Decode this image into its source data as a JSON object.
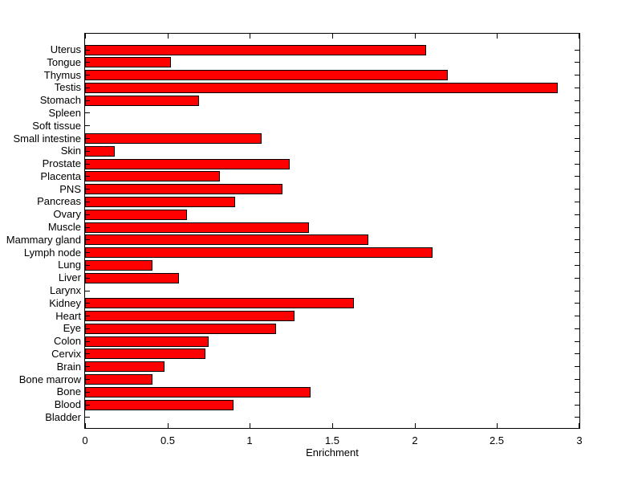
{
  "figure": {
    "background": "#ffffff"
  },
  "chart_data": {
    "type": "bar",
    "orientation": "horizontal",
    "title": "",
    "xlabel": "Enrichment",
    "ylabel": "",
    "xlim": [
      0,
      3
    ],
    "xticks": [
      0,
      0.5,
      1,
      1.5,
      2,
      2.5,
      3
    ],
    "xtick_labels": [
      "0",
      "0.5",
      "1",
      "1.5",
      "2",
      "2.5",
      "3"
    ],
    "grid": false,
    "legend": null,
    "bar_color": "#ff0000",
    "bar_edge_color": "#000000",
    "axis_color": "#000000",
    "text_color": "#000000",
    "categories": [
      "Uterus",
      "Tongue",
      "Thymus",
      "Testis",
      "Stomach",
      "Spleen",
      "Soft tissue",
      "Small intestine",
      "Skin",
      "Prostate",
      "Placenta",
      "PNS",
      "Pancreas",
      "Ovary",
      "Muscle",
      "Mammary gland",
      "Lymph node",
      "Lung",
      "Liver",
      "Larynx",
      "Kidney",
      "Heart",
      "Eye",
      "Colon",
      "Cervix",
      "Brain",
      "Bone marrow",
      "Bone",
      "Blood",
      "Bladder"
    ],
    "values": [
      2.07,
      0.52,
      2.2,
      2.87,
      0.69,
      0,
      0,
      1.07,
      0.18,
      1.24,
      0.82,
      1.2,
      0.91,
      0.62,
      1.36,
      1.72,
      2.11,
      0.41,
      0.57,
      0,
      1.63,
      1.27,
      1.16,
      0.75,
      0.73,
      0.48,
      0.41,
      1.37,
      0.9,
      0
    ]
  }
}
